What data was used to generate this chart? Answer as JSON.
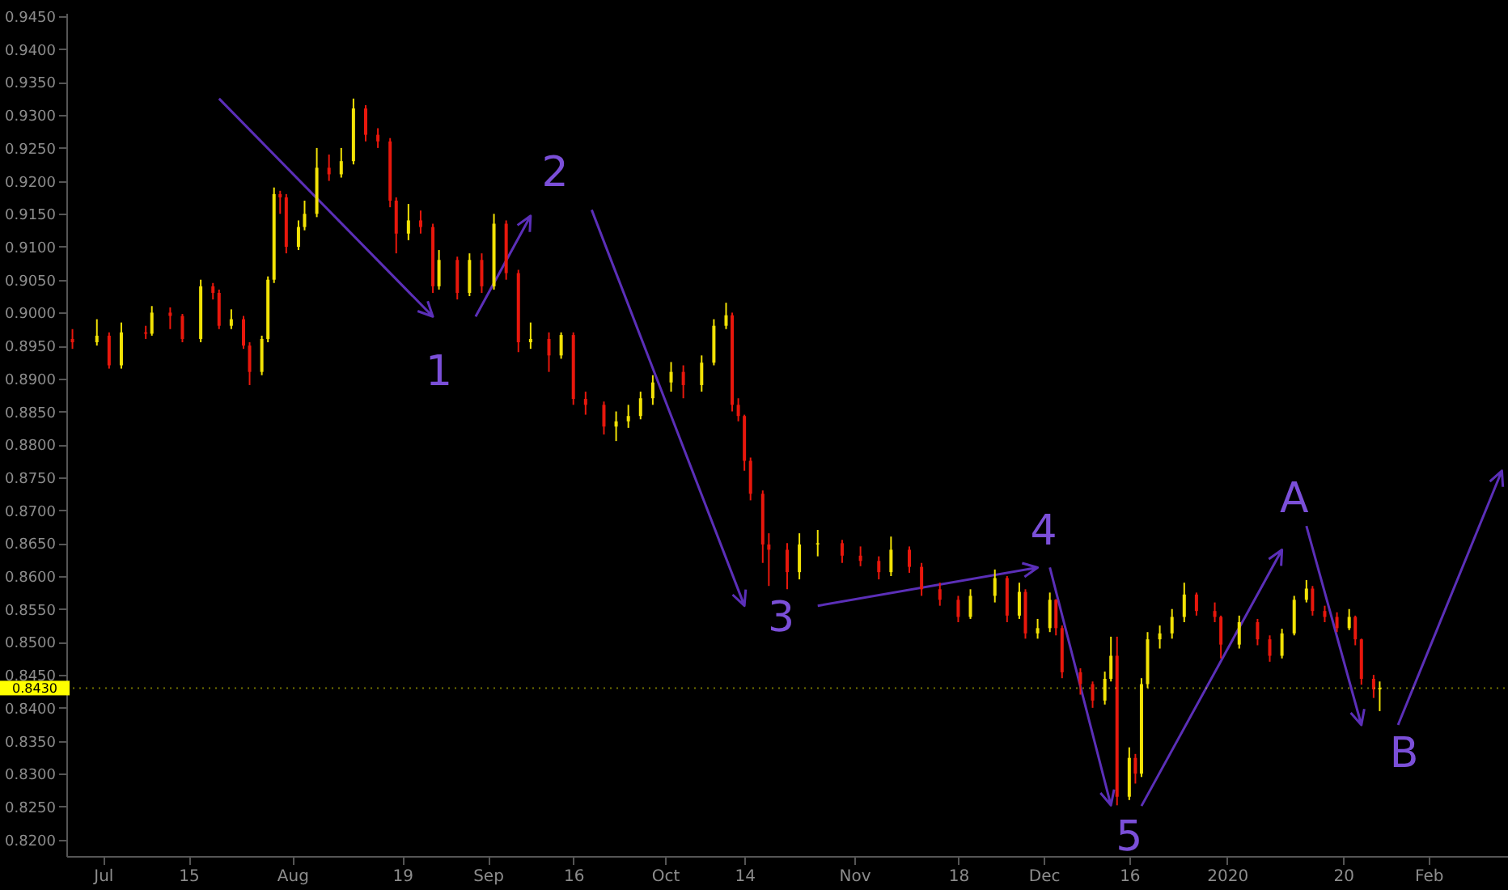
{
  "chart_data": {
    "type": "candlestick",
    "xlim": [
      "2019-06-25",
      "2020-02-16"
    ],
    "xticks": [
      {
        "value": "2019-07-01",
        "label": "Jul"
      },
      {
        "value": "2019-07-15",
        "label": "15"
      },
      {
        "value": "2019-08-01",
        "label": "Aug"
      },
      {
        "value": "2019-08-19",
        "label": "19"
      },
      {
        "value": "2019-09-02",
        "label": "Sep"
      },
      {
        "value": "2019-09-16",
        "label": "16"
      },
      {
        "value": "2019-10-01",
        "label": "Oct"
      },
      {
        "value": "2019-10-14",
        "label": "14"
      },
      {
        "value": "2019-11-01",
        "label": "Nov"
      },
      {
        "value": "2019-11-18",
        "label": "18"
      },
      {
        "value": "2019-12-02",
        "label": "Dec"
      },
      {
        "value": "2019-12-16",
        "label": "16"
      },
      {
        "value": "2020-01-01",
        "label": "2020"
      },
      {
        "value": "2020-01-20",
        "label": "20"
      },
      {
        "value": "2020-02-03",
        "label": "Feb"
      }
    ],
    "ylim": [
      0.8175,
      0.9455
    ],
    "yticks": [
      {
        "value": 0.82,
        "label": "0.8200"
      },
      {
        "value": 0.825,
        "label": "0.8250"
      },
      {
        "value": 0.83,
        "label": "0.8300"
      },
      {
        "value": 0.835,
        "label": "0.8350"
      },
      {
        "value": 0.84,
        "label": "0.8400"
      },
      {
        "value": 0.845,
        "label": "0.8450"
      },
      {
        "value": 0.85,
        "label": "0.8500"
      },
      {
        "value": 0.855,
        "label": "0.8550"
      },
      {
        "value": 0.86,
        "label": "0.8600"
      },
      {
        "value": 0.865,
        "label": "0.8650"
      },
      {
        "value": 0.87,
        "label": "0.8700"
      },
      {
        "value": 0.875,
        "label": "0.8750"
      },
      {
        "value": 0.88,
        "label": "0.8800"
      },
      {
        "value": 0.885,
        "label": "0.8850"
      },
      {
        "value": 0.89,
        "label": "0.8900"
      },
      {
        "value": 0.895,
        "label": "0.8950"
      },
      {
        "value": 0.9,
        "label": "0.9000"
      },
      {
        "value": 0.905,
        "label": "0.9050"
      },
      {
        "value": 0.91,
        "label": "0.9100"
      },
      {
        "value": 0.915,
        "label": "0.9150"
      },
      {
        "value": 0.92,
        "label": "0.9200"
      },
      {
        "value": 0.925,
        "label": "0.9250"
      },
      {
        "value": 0.93,
        "label": "0.9300"
      },
      {
        "value": 0.935,
        "label": "0.9350"
      },
      {
        "value": 0.94,
        "label": "0.9400"
      },
      {
        "value": 0.945,
        "label": "0.9450"
      }
    ],
    "series": [
      {
        "color": "#f2e205",
        "x": [
          "2019-06-30",
          "2019-07-04",
          "2019-07-09",
          "2019-07-17",
          "2019-07-22",
          "2019-07-27",
          "2019-07-28",
          "2019-07-29",
          "2019-08-02",
          "2019-08-03",
          "2019-08-05",
          "2019-08-09",
          "2019-08-11",
          "2019-08-20",
          "2019-08-25",
          "2019-08-30",
          "2019-09-03",
          "2019-09-09",
          "2019-09-14",
          "2019-09-23",
          "2019-09-25",
          "2019-09-27",
          "2019-09-29",
          "2019-10-02",
          "2019-10-07",
          "2019-10-09",
          "2019-10-11",
          "2019-10-23",
          "2019-10-26",
          "2019-11-07",
          "2019-11-20",
          "2019-11-24",
          "2019-11-28",
          "2019-12-01",
          "2019-12-03",
          "2019-12-12",
          "2019-12-13",
          "2019-12-16",
          "2019-12-18",
          "2019-12-19",
          "2019-12-21",
          "2019-12-23",
          "2019-12-25",
          "2020-01-03",
          "2020-01-10",
          "2020-01-12",
          "2020-01-14",
          "2020-01-21",
          "2020-01-26"
        ],
        "ohlc": [
          [
            0.8955,
            0.899,
            0.895,
            0.8965
          ],
          [
            0.892,
            0.8985,
            0.8915,
            0.897
          ],
          [
            0.8968,
            0.901,
            0.8965,
            0.9
          ],
          [
            0.896,
            0.905,
            0.8955,
            0.904
          ],
          [
            0.898,
            0.9005,
            0.8975,
            0.899
          ],
          [
            0.891,
            0.8965,
            0.8905,
            0.896
          ],
          [
            0.896,
            0.9055,
            0.8955,
            0.905
          ],
          [
            0.905,
            0.919,
            0.9045,
            0.918
          ],
          [
            0.91,
            0.914,
            0.9095,
            0.913
          ],
          [
            0.913,
            0.917,
            0.9125,
            0.915
          ],
          [
            0.915,
            0.925,
            0.9145,
            0.922
          ],
          [
            0.921,
            0.925,
            0.9205,
            0.923
          ],
          [
            0.923,
            0.9325,
            0.9225,
            0.931
          ],
          [
            0.912,
            0.9165,
            0.911,
            0.914
          ],
          [
            0.904,
            0.9095,
            0.9035,
            0.908
          ],
          [
            0.903,
            0.909,
            0.9025,
            0.908
          ],
          [
            0.904,
            0.915,
            0.9035,
            0.9135
          ],
          [
            0.8955,
            0.8985,
            0.8945,
            0.896
          ],
          [
            0.8935,
            0.897,
            0.893,
            0.8966
          ],
          [
            0.8827,
            0.885,
            0.8805,
            0.8835
          ],
          [
            0.8835,
            0.886,
            0.8825,
            0.8843
          ],
          [
            0.8843,
            0.888,
            0.8838,
            0.887
          ],
          [
            0.887,
            0.8905,
            0.886,
            0.8894
          ],
          [
            0.8894,
            0.8925,
            0.888,
            0.891
          ],
          [
            0.889,
            0.8935,
            0.888,
            0.8924
          ],
          [
            0.8924,
            0.899,
            0.892,
            0.898
          ],
          [
            0.898,
            0.9015,
            0.8975,
            0.8996
          ],
          [
            0.8606,
            0.8665,
            0.8595,
            0.8648
          ],
          [
            0.8648,
            0.867,
            0.863,
            0.865
          ],
          [
            0.8606,
            0.866,
            0.86,
            0.864
          ],
          [
            0.8538,
            0.858,
            0.8535,
            0.857
          ],
          [
            0.857,
            0.861,
            0.856,
            0.8597
          ],
          [
            0.854,
            0.859,
            0.8535,
            0.8576
          ],
          [
            0.8513,
            0.8535,
            0.8505,
            0.8521
          ],
          [
            0.8521,
            0.8575,
            0.8515,
            0.8564
          ],
          [
            0.8411,
            0.8455,
            0.8405,
            0.8444
          ],
          [
            0.8444,
            0.8508,
            0.844,
            0.8479
          ],
          [
            0.8265,
            0.834,
            0.826,
            0.8324
          ],
          [
            0.83,
            0.8445,
            0.8295,
            0.8436
          ],
          [
            0.8436,
            0.8515,
            0.843,
            0.8504
          ],
          [
            0.8504,
            0.8525,
            0.849,
            0.8513
          ],
          [
            0.8513,
            0.855,
            0.8505,
            0.8538
          ],
          [
            0.8538,
            0.859,
            0.853,
            0.8572
          ],
          [
            0.8496,
            0.854,
            0.849,
            0.853
          ],
          [
            0.8479,
            0.852,
            0.8475,
            0.8513
          ],
          [
            0.8513,
            0.857,
            0.851,
            0.8564
          ],
          [
            0.8564,
            0.8594,
            0.856,
            0.8581
          ],
          [
            0.8521,
            0.855,
            0.8518,
            0.8538
          ],
          [
            0.8428,
            0.844,
            0.8395,
            0.843
          ]
        ]
      },
      {
        "color": "#e8170c",
        "x": [
          "2019-06-26",
          "2019-07-02",
          "2019-07-08",
          "2019-07-12",
          "2019-07-14",
          "2019-07-19",
          "2019-07-20",
          "2019-07-24",
          "2019-07-25",
          "2019-07-30",
          "2019-07-31",
          "2019-08-07",
          "2019-08-13",
          "2019-08-15",
          "2019-08-17",
          "2019-08-18",
          "2019-08-22",
          "2019-08-24",
          "2019-08-28",
          "2019-09-01",
          "2019-09-05",
          "2019-09-07",
          "2019-09-12",
          "2019-09-16",
          "2019-09-18",
          "2019-09-21",
          "2019-10-04",
          "2019-10-12",
          "2019-10-13",
          "2019-10-14",
          "2019-10-15",
          "2019-10-17",
          "2019-10-18",
          "2019-10-21",
          "2019-10-30",
          "2019-11-02",
          "2019-11-05",
          "2019-11-10",
          "2019-11-12",
          "2019-11-15",
          "2019-11-18",
          "2019-11-26",
          "2019-11-29",
          "2019-12-04",
          "2019-12-05",
          "2019-12-08",
          "2019-12-10",
          "2019-12-14",
          "2019-12-17",
          "2019-12-27",
          "2019-12-30",
          "2019-12-31",
          "2020-01-06",
          "2020-01-08",
          "2020-01-15",
          "2020-01-17",
          "2020-01-19",
          "2020-01-22",
          "2020-01-23",
          "2020-01-25"
        ],
        "ohlc": [
          [
            0.896,
            0.8975,
            0.8945,
            0.8955
          ],
          [
            0.8965,
            0.897,
            0.8915,
            0.892
          ],
          [
            0.897,
            0.898,
            0.896,
            0.8968
          ],
          [
            0.9,
            0.9008,
            0.8975,
            0.8995
          ],
          [
            0.8995,
            0.8998,
            0.8955,
            0.896
          ],
          [
            0.904,
            0.9045,
            0.902,
            0.903
          ],
          [
            0.903,
            0.9035,
            0.8975,
            0.898
          ],
          [
            0.899,
            0.8995,
            0.8945,
            0.895
          ],
          [
            0.895,
            0.8955,
            0.889,
            0.891
          ],
          [
            0.918,
            0.9185,
            0.915,
            0.9175
          ],
          [
            0.9175,
            0.918,
            0.909,
            0.91
          ],
          [
            0.922,
            0.924,
            0.92,
            0.921
          ],
          [
            0.931,
            0.9315,
            0.926,
            0.927
          ],
          [
            0.927,
            0.928,
            0.925,
            0.926
          ],
          [
            0.926,
            0.9265,
            0.916,
            0.917
          ],
          [
            0.917,
            0.9175,
            0.909,
            0.912
          ],
          [
            0.914,
            0.9155,
            0.912,
            0.913
          ],
          [
            0.913,
            0.9135,
            0.903,
            0.904
          ],
          [
            0.908,
            0.9085,
            0.902,
            0.903
          ],
          [
            0.908,
            0.909,
            0.903,
            0.904
          ],
          [
            0.9135,
            0.914,
            0.905,
            0.906
          ],
          [
            0.906,
            0.9065,
            0.894,
            0.8955
          ],
          [
            0.896,
            0.897,
            0.891,
            0.8935
          ],
          [
            0.8966,
            0.897,
            0.886,
            0.8869
          ],
          [
            0.8869,
            0.888,
            0.8845,
            0.886
          ],
          [
            0.886,
            0.8865,
            0.8815,
            0.8827
          ],
          [
            0.891,
            0.892,
            0.887,
            0.889
          ],
          [
            0.8996,
            0.9,
            0.885,
            0.886
          ],
          [
            0.886,
            0.887,
            0.8835,
            0.8843
          ],
          [
            0.8843,
            0.8845,
            0.876,
            0.8775
          ],
          [
            0.8775,
            0.878,
            0.8715,
            0.8725
          ],
          [
            0.8725,
            0.873,
            0.862,
            0.8648
          ],
          [
            0.8648,
            0.8665,
            0.8585,
            0.864
          ],
          [
            0.864,
            0.865,
            0.858,
            0.8606
          ],
          [
            0.865,
            0.8655,
            0.862,
            0.8631
          ],
          [
            0.8631,
            0.8645,
            0.8615,
            0.8623
          ],
          [
            0.8623,
            0.863,
            0.8595,
            0.8606
          ],
          [
            0.864,
            0.8645,
            0.8605,
            0.8614
          ],
          [
            0.8614,
            0.862,
            0.857,
            0.858
          ],
          [
            0.858,
            0.859,
            0.8555,
            0.8564
          ],
          [
            0.8564,
            0.857,
            0.853,
            0.8538
          ],
          [
            0.8597,
            0.86,
            0.853,
            0.854
          ],
          [
            0.8576,
            0.858,
            0.8505,
            0.8513
          ],
          [
            0.8564,
            0.8565,
            0.851,
            0.8521
          ],
          [
            0.8521,
            0.8525,
            0.8445,
            0.8454
          ],
          [
            0.8454,
            0.846,
            0.842,
            0.8436
          ],
          [
            0.8436,
            0.844,
            0.84,
            0.8411
          ],
          [
            0.8479,
            0.8508,
            0.8252,
            0.8265
          ],
          [
            0.8324,
            0.833,
            0.8285,
            0.83
          ],
          [
            0.8572,
            0.8575,
            0.854,
            0.8547
          ],
          [
            0.8547,
            0.856,
            0.853,
            0.8538
          ],
          [
            0.8538,
            0.854,
            0.8475,
            0.8496
          ],
          [
            0.853,
            0.8535,
            0.8495,
            0.8504
          ],
          [
            0.8504,
            0.851,
            0.847,
            0.8479
          ],
          [
            0.8581,
            0.8585,
            0.854,
            0.8547
          ],
          [
            0.8547,
            0.8555,
            0.853,
            0.8538
          ],
          [
            0.8538,
            0.8545,
            0.8515,
            0.8521
          ],
          [
            0.8538,
            0.854,
            0.8495,
            0.8504
          ],
          [
            0.8504,
            0.8505,
            0.8435,
            0.8444
          ],
          [
            0.8444,
            0.845,
            0.8415,
            0.8428
          ]
        ]
      }
    ],
    "ref_lines": [
      {
        "axis": "y",
        "value": 0.843,
        "label": "0.8430",
        "color": "#ffff00"
      }
    ],
    "annotations": [
      "1",
      "2",
      "3",
      {
        "text": "4",
        "x": "2019-12-13",
        "y": 0.8252
      },
      "5",
      "A",
      "B"
    ]
  }
}
